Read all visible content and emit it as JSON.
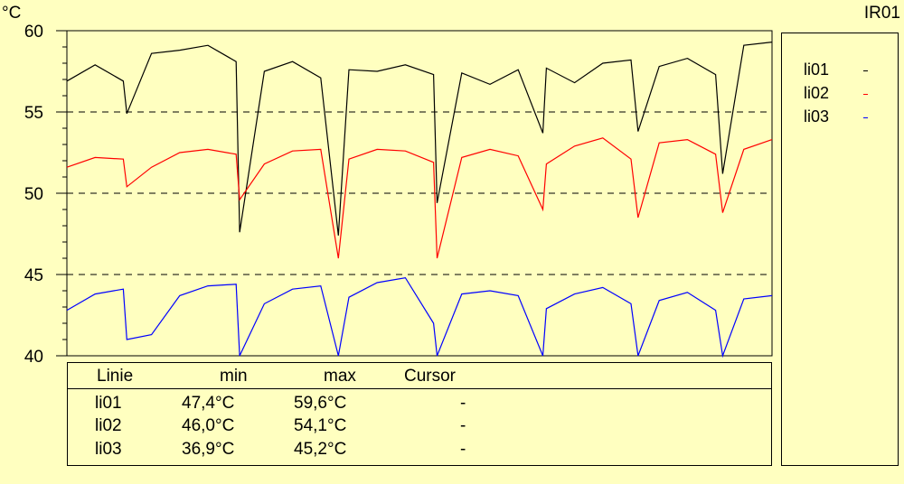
{
  "chart_data": {
    "type": "line",
    "title": "IR01",
    "ylabel": "°C",
    "ylim": [
      40,
      60
    ],
    "yticks": [
      40,
      45,
      50,
      55,
      60
    ],
    "grid_y": [
      45,
      50,
      55
    ],
    "legend_placement": "right",
    "x": [
      0,
      4,
      8,
      12,
      16,
      20,
      24,
      28,
      32,
      36,
      40,
      44,
      48,
      52,
      56,
      60,
      64,
      68,
      72,
      76,
      80,
      84,
      88,
      92,
      96,
      100
    ],
    "series": [
      {
        "name": "li01",
        "color": "#000000",
        "values": [
          56.9,
          57.9,
          56.9,
          58.6,
          58.8,
          59.1,
          58.1,
          57.5,
          58.1,
          57.1,
          57.6,
          57.5,
          57.9,
          57.3,
          57.4,
          56.7,
          57.6,
          57.7,
          56.8,
          58.0,
          58.2,
          57.8,
          58.3,
          57.3,
          59.1,
          59.3
        ]
      },
      {
        "name": "li02",
        "color": "#FF0000",
        "values": [
          51.6,
          52.2,
          52.1,
          51.6,
          52.5,
          52.7,
          52.4,
          51.8,
          52.6,
          52.7,
          52.1,
          52.7,
          52.6,
          51.9,
          52.2,
          52.7,
          52.3,
          51.8,
          52.9,
          53.4,
          52.1,
          53.1,
          53.3,
          52.4,
          52.7,
          53.3
        ]
      },
      {
        "name": "li03",
        "color": "#0000FF",
        "values": [
          42.8,
          43.8,
          44.1,
          41.3,
          43.7,
          44.3,
          44.4,
          43.2,
          44.1,
          44.3,
          43.6,
          44.5,
          44.8,
          42.0,
          43.8,
          44.0,
          43.7,
          42.9,
          43.8,
          44.2,
          43.2,
          43.4,
          43.9,
          42.8,
          43.5,
          43.7
        ]
      }
    ],
    "dips": [
      {
        "x": 8.5,
        "li01": 54.9,
        "li02": 50.4,
        "li03": 41.0
      },
      {
        "x": 24.5,
        "li01": 47.6,
        "li02": 49.6,
        "li03": 40.0
      },
      {
        "x": 38.5,
        "li01": 47.4,
        "li02": 46.0,
        "li03": 40.0
      },
      {
        "x": 52.5,
        "li01": 49.4,
        "li02": 46.0,
        "li03": 40.0
      },
      {
        "x": 67.5,
        "li01": 53.7,
        "li02": 49.0,
        "li03": 40.0
      },
      {
        "x": 81.0,
        "li01": 53.8,
        "li02": 48.5,
        "li03": 40.0
      },
      {
        "x": 93.0,
        "li01": 51.2,
        "li02": 48.8,
        "li03": 40.0
      }
    ]
  },
  "table": {
    "headers": {
      "line": "Linie",
      "min": "min",
      "max": "max",
      "cursor": "Cursor"
    },
    "rows": [
      {
        "line": "li01",
        "min": "47,4°C",
        "max": "59,6°C",
        "cursor": "-"
      },
      {
        "line": "li02",
        "min": "46,0°C",
        "max": "54,1°C",
        "cursor": "-"
      },
      {
        "line": "li03",
        "min": "36,9°C",
        "max": "45,2°C",
        "cursor": "-"
      }
    ]
  }
}
